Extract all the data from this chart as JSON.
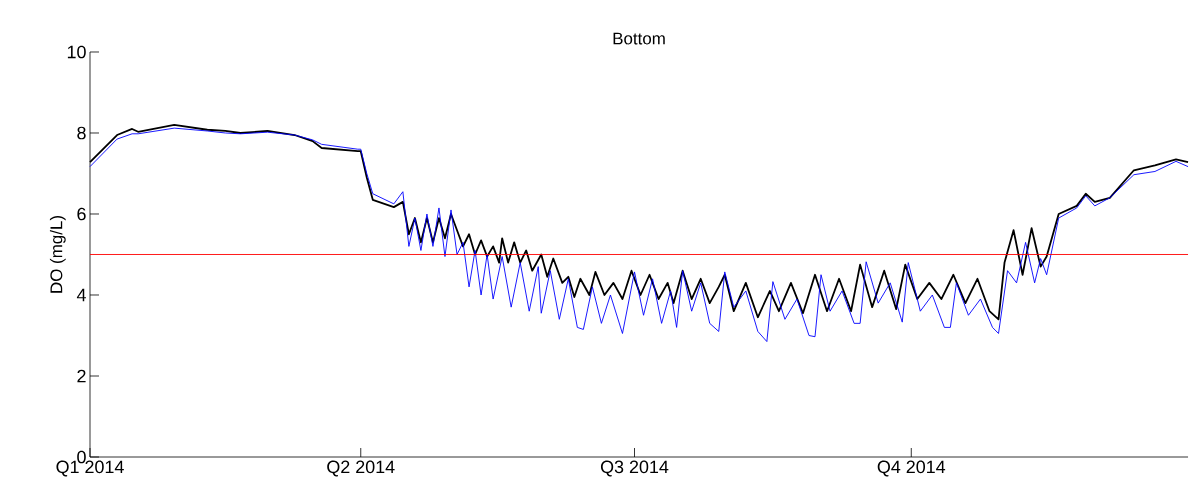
{
  "chart_data": {
    "type": "line",
    "title": "Bottom",
    "ylabel": "DO (mg/L)",
    "xlim": [
      "2014-01-01",
      "2015-01-01"
    ],
    "xticks": [
      {
        "value": "2014-01-01",
        "label": "Q1 2014"
      },
      {
        "value": "2014-04-01",
        "label": "Q2 2014"
      },
      {
        "value": "2014-07-01",
        "label": "Q3 2014"
      },
      {
        "value": "2014-10-01",
        "label": "Q4 2014"
      }
    ],
    "ylim": [
      0,
      10
    ],
    "yticks": [
      0,
      2,
      4,
      6,
      8,
      10
    ],
    "ref_lines": [
      {
        "axis": "y",
        "value": 5,
        "color": "#ff0000"
      }
    ],
    "series": [
      {
        "color": "#000000",
        "x": [
          "2014-01-01",
          "2014-01-10",
          "2014-01-15",
          "2014-01-17",
          "2014-01-29",
          "2014-02-09",
          "2014-02-15",
          "2014-02-20",
          "2014-03-01",
          "2014-03-10",
          "2014-03-16",
          "2014-03-19",
          "2014-03-31",
          "2014-04-01",
          "2014-04-03",
          "2014-04-05",
          "2014-04-12",
          "2014-04-15",
          "2014-04-17",
          "2014-04-19",
          "2014-04-21",
          "2014-04-23",
          "2014-04-25",
          "2014-04-27",
          "2014-04-29",
          "2014-05-01",
          "2014-05-03",
          "2014-05-05",
          "2014-05-07",
          "2014-05-09",
          "2014-05-11",
          "2014-05-13",
          "2014-05-15",
          "2014-05-17",
          "2014-05-18",
          "2014-05-20",
          "2014-05-22",
          "2014-05-24",
          "2014-05-26",
          "2014-05-28",
          "2014-05-31",
          "2014-06-02",
          "2014-06-04",
          "2014-06-07",
          "2014-06-09",
          "2014-06-11",
          "2014-06-13",
          "2014-06-16",
          "2014-06-18",
          "2014-06-21",
          "2014-06-24",
          "2014-06-27",
          "2014-06-30",
          "2014-07-03",
          "2014-07-06",
          "2014-07-09",
          "2014-07-12",
          "2014-07-14",
          "2014-07-17",
          "2014-07-20",
          "2014-07-23",
          "2014-07-26",
          "2014-07-29",
          "2014-07-31",
          "2014-08-03",
          "2014-08-07",
          "2014-08-11",
          "2014-08-15",
          "2014-08-18",
          "2014-08-22",
          "2014-08-26",
          "2014-08-30",
          "2014-09-03",
          "2014-09-07",
          "2014-09-11",
          "2014-09-14",
          "2014-09-18",
          "2014-09-22",
          "2014-09-26",
          "2014-09-29",
          "2014-10-03",
          "2014-10-07",
          "2014-10-11",
          "2014-10-15",
          "2014-10-19",
          "2014-10-23",
          "2014-10-27",
          "2014-10-30",
          "2014-11-01",
          "2014-11-04",
          "2014-11-07",
          "2014-11-10",
          "2014-11-13",
          "2014-11-15",
          "2014-11-19",
          "2014-11-25",
          "2014-11-28",
          "2014-12-01",
          "2014-12-06",
          "2014-12-14",
          "2014-12-21",
          "2014-12-28",
          "2015-01-01"
        ],
        "values": [
          7.28,
          7.95,
          8.1,
          8.03,
          8.2,
          8.08,
          8.05,
          8.0,
          8.05,
          7.95,
          7.8,
          7.63,
          7.55,
          7.55,
          6.9,
          6.35,
          6.17,
          6.3,
          5.5,
          5.9,
          5.3,
          5.9,
          5.3,
          5.9,
          5.4,
          6.0,
          5.6,
          5.2,
          5.5,
          5.0,
          5.35,
          4.95,
          5.2,
          4.8,
          5.4,
          4.8,
          5.3,
          4.8,
          5.1,
          4.6,
          5.0,
          4.45,
          4.9,
          4.3,
          4.45,
          3.95,
          4.4,
          4.0,
          4.57,
          4.0,
          4.3,
          3.9,
          4.6,
          4.0,
          4.5,
          3.9,
          4.3,
          3.8,
          4.6,
          3.9,
          4.4,
          3.8,
          4.2,
          4.5,
          3.6,
          4.3,
          3.45,
          4.1,
          3.6,
          4.3,
          3.55,
          4.5,
          3.6,
          4.4,
          3.6,
          4.75,
          3.7,
          4.6,
          3.65,
          4.75,
          3.9,
          4.3,
          3.9,
          4.5,
          3.8,
          4.4,
          3.6,
          3.4,
          4.8,
          5.6,
          4.5,
          5.65,
          4.7,
          4.95,
          6.0,
          6.2,
          6.5,
          6.3,
          6.4,
          7.08,
          7.2,
          7.35,
          7.28
        ]
      },
      {
        "color": "#0000ff",
        "x": [
          "2014-01-01",
          "2014-01-10",
          "2014-01-15",
          "2014-01-17",
          "2014-01-29",
          "2014-02-09",
          "2014-02-15",
          "2014-02-20",
          "2014-03-01",
          "2014-03-10",
          "2014-03-16",
          "2014-03-19",
          "2014-03-31",
          "2014-04-01",
          "2014-04-03",
          "2014-04-05",
          "2014-04-12",
          "2014-04-15",
          "2014-04-17",
          "2014-04-19",
          "2014-04-21",
          "2014-04-23",
          "2014-04-25",
          "2014-04-27",
          "2014-04-29",
          "2014-05-01",
          "2014-05-03",
          "2014-05-05",
          "2014-05-07",
          "2014-05-09",
          "2014-05-11",
          "2014-05-13",
          "2014-05-15",
          "2014-05-18",
          "2014-05-21",
          "2014-05-24",
          "2014-05-27",
          "2014-05-30",
          "2014-05-31",
          "2014-06-03",
          "2014-06-06",
          "2014-06-09",
          "2014-06-12",
          "2014-06-14",
          "2014-06-17",
          "2014-06-20",
          "2014-06-23",
          "2014-06-27",
          "2014-07-01",
          "2014-07-04",
          "2014-07-07",
          "2014-07-10",
          "2014-07-13",
          "2014-07-15",
          "2014-07-17",
          "2014-07-20",
          "2014-07-23",
          "2014-07-26",
          "2014-07-29",
          "2014-07-31",
          "2014-08-03",
          "2014-08-07",
          "2014-08-11",
          "2014-08-14",
          "2014-08-16",
          "2014-08-20",
          "2014-08-24",
          "2014-08-28",
          "2014-08-30",
          "2014-09-01",
          "2014-09-04",
          "2014-09-08",
          "2014-09-12",
          "2014-09-14",
          "2014-09-16",
          "2014-09-20",
          "2014-09-24",
          "2014-09-28",
          "2014-09-30",
          "2014-10-04",
          "2014-10-08",
          "2014-10-12",
          "2014-10-14",
          "2014-10-16",
          "2014-10-20",
          "2014-10-24",
          "2014-10-28",
          "2014-10-30",
          "2014-11-02",
          "2014-11-05",
          "2014-11-08",
          "2014-11-11",
          "2014-11-13",
          "2014-11-15",
          "2014-11-19",
          "2014-11-25",
          "2014-11-28",
          "2014-12-01",
          "2014-12-06",
          "2014-12-14",
          "2014-12-21",
          "2014-12-28",
          "2015-01-01"
        ],
        "values": [
          7.17,
          7.85,
          7.98,
          7.98,
          8.12,
          8.05,
          8.0,
          7.98,
          8.02,
          7.95,
          7.83,
          7.72,
          7.6,
          7.6,
          7.0,
          6.5,
          6.25,
          6.55,
          5.2,
          5.9,
          5.1,
          6.0,
          5.2,
          6.15,
          4.95,
          6.1,
          5.0,
          5.3,
          4.2,
          5.1,
          4.0,
          5.0,
          3.9,
          4.95,
          3.7,
          4.8,
          3.6,
          4.7,
          3.55,
          4.6,
          3.4,
          4.4,
          3.2,
          3.15,
          4.2,
          3.3,
          4.0,
          3.05,
          4.57,
          3.5,
          4.4,
          3.3,
          4.1,
          3.2,
          4.6,
          3.6,
          4.3,
          3.3,
          3.1,
          4.57,
          3.7,
          4.1,
          3.1,
          2.85,
          4.33,
          3.4,
          3.9,
          3.0,
          2.97,
          4.5,
          3.6,
          4.1,
          3.3,
          3.3,
          4.82,
          3.8,
          4.3,
          3.33,
          4.8,
          3.6,
          4.0,
          3.2,
          3.2,
          4.3,
          3.5,
          3.9,
          3.2,
          3.05,
          4.6,
          4.3,
          5.3,
          4.3,
          4.9,
          4.5,
          5.9,
          6.15,
          6.45,
          6.2,
          6.4,
          6.97,
          7.05,
          7.3,
          7.17
        ]
      }
    ]
  }
}
